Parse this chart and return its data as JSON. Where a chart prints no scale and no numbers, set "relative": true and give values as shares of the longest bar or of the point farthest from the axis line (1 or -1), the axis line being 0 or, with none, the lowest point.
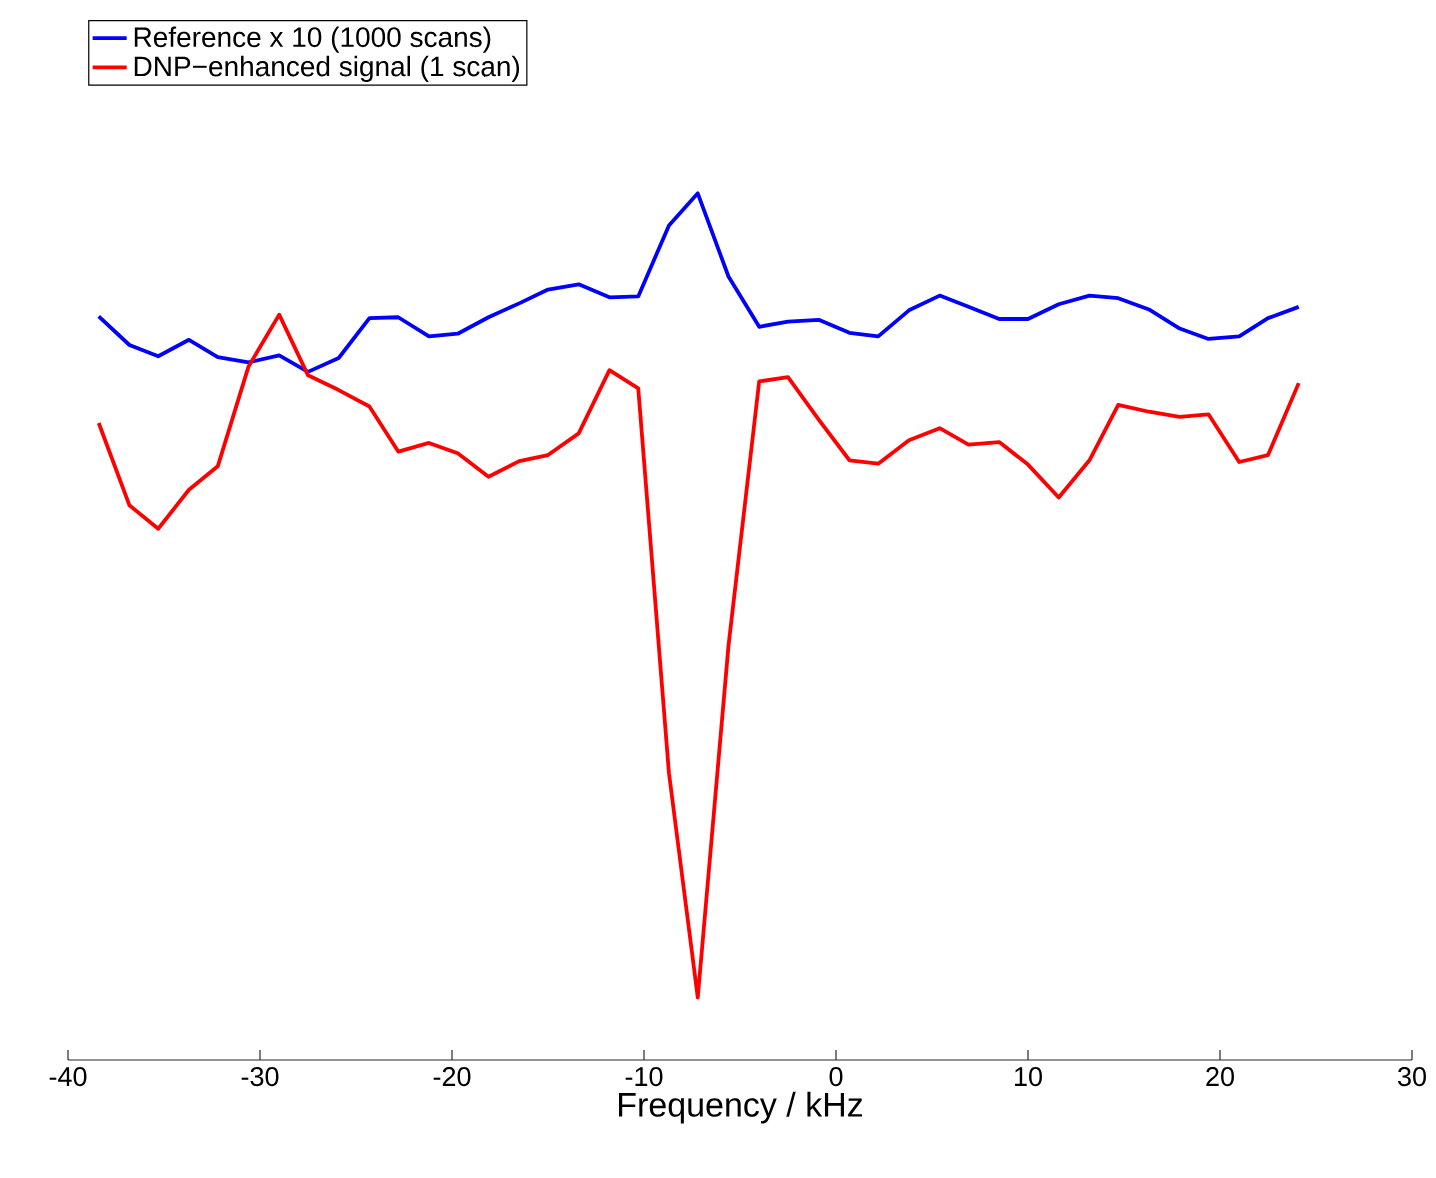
{
  "chart_data": {
    "type": "line",
    "relative": true,
    "xlabel": "Frequency / kHz",
    "x": [
      -38.4,
      -36.8,
      -35.3,
      -33.7,
      -32.2,
      -30.6,
      -29.0,
      -27.5,
      -25.9,
      -24.3,
      -22.8,
      -21.2,
      -19.7,
      -18.1,
      -16.5,
      -15.0,
      -13.4,
      -11.8,
      -10.3,
      -8.7,
      -7.2,
      -5.6,
      -4.0,
      -2.5,
      -0.9,
      0.7,
      2.2,
      3.8,
      5.4,
      6.9,
      8.5,
      10.0,
      11.6,
      13.2,
      14.7,
      16.3,
      17.9,
      19.4,
      21.0,
      22.5,
      24.1
    ],
    "series": [
      {
        "name": "Reference x 10 (1000 scans)",
        "color": "#0000ff",
        "values": [
          0.858,
          0.825,
          0.812,
          0.831,
          0.811,
          0.805,
          0.813,
          0.794,
          0.81,
          0.856,
          0.857,
          0.835,
          0.838,
          0.857,
          0.873,
          0.889,
          0.895,
          0.88,
          0.881,
          0.963,
          1.0,
          0.904,
          0.846,
          0.852,
          0.854,
          0.839,
          0.835,
          0.865,
          0.882,
          0.869,
          0.855,
          0.855,
          0.872,
          0.882,
          0.879,
          0.866,
          0.844,
          0.832,
          0.835,
          0.856,
          0.869
        ]
      },
      {
        "name": "DNP−enhanced signal (1 scan)",
        "color": "#ff0000",
        "values": [
          0.735,
          0.64,
          0.613,
          0.658,
          0.685,
          0.8,
          0.86,
          0.79,
          0.773,
          0.754,
          0.702,
          0.712,
          0.7,
          0.673,
          0.691,
          0.698,
          0.723,
          0.796,
          0.775,
          0.331,
          0.072,
          0.478,
          0.783,
          0.788,
          0.739,
          0.692,
          0.688,
          0.715,
          0.729,
          0.71,
          0.713,
          0.687,
          0.649,
          0.692,
          0.756,
          0.748,
          0.742,
          0.745,
          0.69,
          0.698,
          0.781
        ]
      }
    ],
    "xlim": [
      -40,
      30
    ],
    "xticks": [
      -40,
      -30,
      -20,
      -10,
      0,
      10,
      20,
      30
    ],
    "legend": "top left",
    "grid": false,
    "marker": "none",
    "line_style": "solid",
    "tick_labels": "x"
  }
}
